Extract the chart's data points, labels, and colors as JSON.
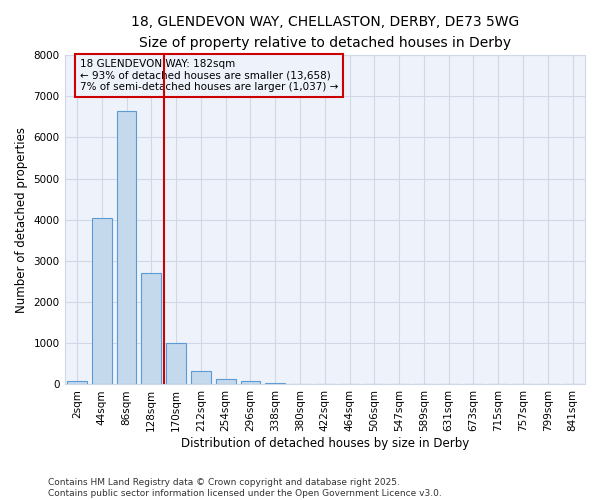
{
  "title": "18, GLENDEVON WAY, CHELLASTON, DERBY, DE73 5WG",
  "subtitle": "Size of property relative to detached houses in Derby",
  "xlabel": "Distribution of detached houses by size in Derby",
  "ylabel": "Number of detached properties",
  "categories": [
    "2sqm",
    "44sqm",
    "86sqm",
    "128sqm",
    "170sqm",
    "212sqm",
    "254sqm",
    "296sqm",
    "338sqm",
    "380sqm",
    "422sqm",
    "464sqm",
    "506sqm",
    "547sqm",
    "589sqm",
    "631sqm",
    "673sqm",
    "715sqm",
    "757sqm",
    "799sqm",
    "841sqm"
  ],
  "values": [
    80,
    4050,
    6650,
    2700,
    1000,
    330,
    140,
    80,
    30,
    10,
    5,
    3,
    2,
    1,
    1,
    0,
    0,
    0,
    0,
    0,
    0
  ],
  "bar_color": "#c5d9ed",
  "bar_edge_color": "#5b9bd5",
  "grid_color": "#d0d8e8",
  "background_color": "#ffffff",
  "plot_bg_color": "#eef3fb",
  "red_line_x": 3.5,
  "red_line_color": "#cc0000",
  "annotation_text_line1": "18 GLENDEVON WAY: 182sqm",
  "annotation_text_line2": "← 93% of detached houses are smaller (13,658)",
  "annotation_text_line3": "7% of semi-detached houses are larger (1,037) →",
  "ylim": [
    0,
    8000
  ],
  "yticks": [
    0,
    1000,
    2000,
    3000,
    4000,
    5000,
    6000,
    7000,
    8000
  ],
  "footer": "Contains HM Land Registry data © Crown copyright and database right 2025.\nContains public sector information licensed under the Open Government Licence v3.0.",
  "title_fontsize": 10,
  "axis_label_fontsize": 8.5,
  "tick_fontsize": 7.5,
  "annotation_fontsize": 7.5,
  "footer_fontsize": 6.5
}
